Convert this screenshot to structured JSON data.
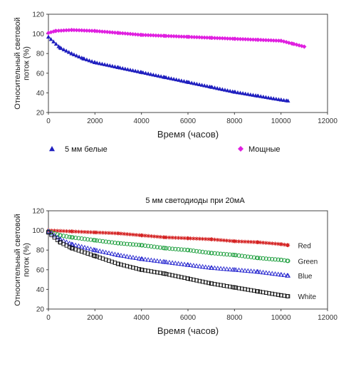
{
  "chart_data": [
    {
      "type": "scatter",
      "title": "",
      "xlabel": "Время (часов)",
      "ylabel": "Относительный световой поток (%)",
      "xlim": [
        0,
        12000
      ],
      "ylim": [
        20,
        120
      ],
      "xticks": [
        "0",
        "2000",
        "4000",
        "6000",
        "8000",
        "10000",
        "12000"
      ],
      "yticks": [
        "20",
        "40",
        "60",
        "80",
        "100",
        "120"
      ],
      "grid": false,
      "legend": "bottom",
      "series": [
        {
          "name": "5 мм белые",
          "color": "#1f1fbf",
          "marker": "triangle",
          "x": [
            0,
            500,
            1000,
            1500,
            2000,
            3000,
            4000,
            5000,
            6000,
            7000,
            8000,
            9000,
            10000,
            10300
          ],
          "y": [
            97,
            86,
            80,
            75,
            71,
            66,
            61,
            56,
            51,
            46,
            41,
            37,
            33,
            32
          ]
        },
        {
          "name": "Мощные",
          "color": "#e020e0",
          "marker": "diamond",
          "x": [
            0,
            300,
            1000,
            2000,
            3000,
            4000,
            5000,
            6000,
            7000,
            8000,
            9000,
            10000,
            10500,
            11000
          ],
          "y": [
            101,
            103,
            104,
            103,
            101,
            99,
            98,
            97,
            96,
            95,
            94,
            93,
            90,
            87
          ]
        }
      ]
    },
    {
      "type": "scatter",
      "title": "5 мм светодиоды при 20мА",
      "xlabel": "Время (часов)",
      "ylabel": "Относительный световой поток (%)",
      "xlim": [
        0,
        12000
      ],
      "ylim": [
        20,
        120
      ],
      "xticks": [
        "0",
        "2000",
        "4000",
        "6000",
        "8000",
        "10000",
        "12000"
      ],
      "yticks": [
        "20",
        "40",
        "60",
        "80",
        "100",
        "120"
      ],
      "grid": false,
      "legend": "inline-right",
      "series": [
        {
          "name": "Red",
          "color": "#d42020",
          "marker": "star",
          "x": [
            0,
            1000,
            2000,
            3000,
            4000,
            5000,
            6000,
            7000,
            8000,
            9000,
            10000,
            10300
          ],
          "y": [
            100,
            99,
            98,
            97,
            95,
            93,
            92,
            91,
            89,
            88,
            86,
            85
          ]
        },
        {
          "name": "Green",
          "color": "#20a040",
          "marker": "circle",
          "x": [
            0,
            500,
            1000,
            2000,
            3000,
            4000,
            5000,
            6000,
            7000,
            8000,
            9000,
            10000,
            10300
          ],
          "y": [
            99,
            95,
            93,
            90,
            87,
            85,
            82,
            80,
            77,
            75,
            72,
            70,
            69
          ]
        },
        {
          "name": "Blue",
          "color": "#2828d0",
          "marker": "triangle-open",
          "x": [
            0,
            500,
            1000,
            2000,
            3000,
            4000,
            5000,
            6000,
            7000,
            8000,
            9000,
            10000,
            10300
          ],
          "y": [
            99,
            91,
            86,
            80,
            75,
            71,
            68,
            65,
            62,
            60,
            58,
            55,
            54
          ]
        },
        {
          "name": "White",
          "color": "#111111",
          "marker": "square-open",
          "x": [
            0,
            500,
            1000,
            2000,
            3000,
            4000,
            5000,
            6000,
            7000,
            8000,
            9000,
            10000,
            10300
          ],
          "y": [
            98,
            88,
            82,
            74,
            66,
            60,
            56,
            51,
            46,
            42,
            38,
            34,
            33
          ]
        }
      ]
    }
  ]
}
